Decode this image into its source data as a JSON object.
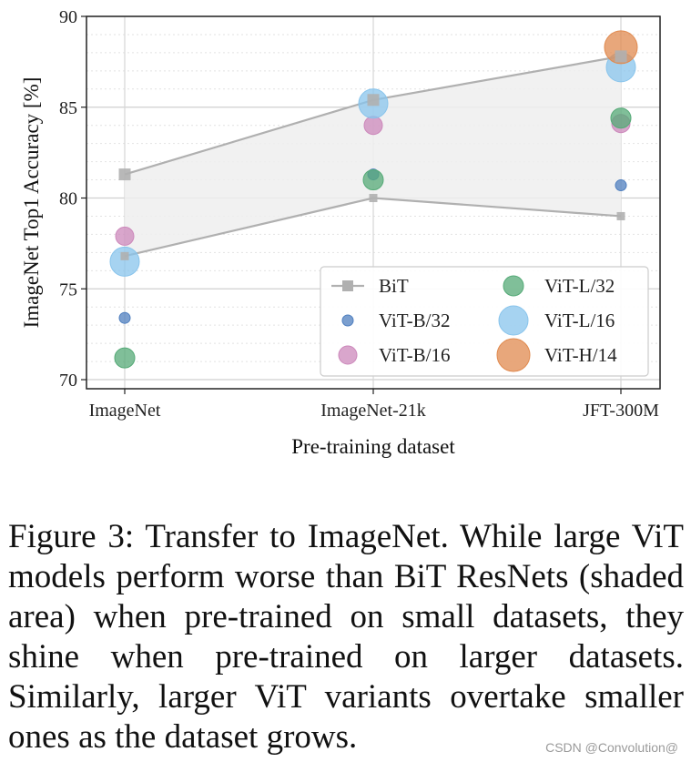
{
  "chart_data": {
    "type": "scatter",
    "title": "",
    "xlabel": "Pre-training dataset",
    "ylabel": "ImageNet Top1 Accuracy [%]",
    "categories": [
      "ImageNet",
      "ImageNet-21k",
      "JFT-300M"
    ],
    "ylim": [
      69.5,
      90
    ],
    "yticks": [
      "70",
      "75",
      "80",
      "85",
      "90"
    ],
    "grid": true,
    "legend_position": "bottom-right",
    "bit": {
      "name": "BiT",
      "color": "#b0b0b0",
      "fill": "#eeeeee",
      "upper": [
        81.3,
        85.4,
        87.8
      ],
      "lower": [
        76.8,
        80.0,
        79.0
      ]
    },
    "series": [
      {
        "name": "ViT-B/32",
        "color": "#4f7fbf",
        "size": 6,
        "values": [
          73.4,
          81.3,
          80.7
        ]
      },
      {
        "name": "ViT-B/16",
        "color": "#cc88bb",
        "size": 10,
        "values": [
          77.9,
          84.0,
          84.1
        ]
      },
      {
        "name": "ViT-L/32",
        "color": "#55aa77",
        "size": 11,
        "values": [
          71.2,
          81.0,
          84.4
        ]
      },
      {
        "name": "ViT-L/16",
        "color": "#88c4ec",
        "size": 16,
        "values": [
          76.5,
          85.2,
          87.2
        ]
      },
      {
        "name": "ViT-H/14",
        "color": "#e08a4f",
        "size": 18,
        "values": [
          null,
          null,
          88.3
        ]
      }
    ]
  },
  "caption": "Figure 3:  Transfer to ImageNet.  While large ViT models perform worse than BiT ResNets (shaded area) when pre-trained on small datasets, they shine when pre-trained on larger datasets.  Similarly, larger ViT variants overtake smaller ones as the dataset grows.",
  "watermark": "CSDN @Convolution@"
}
